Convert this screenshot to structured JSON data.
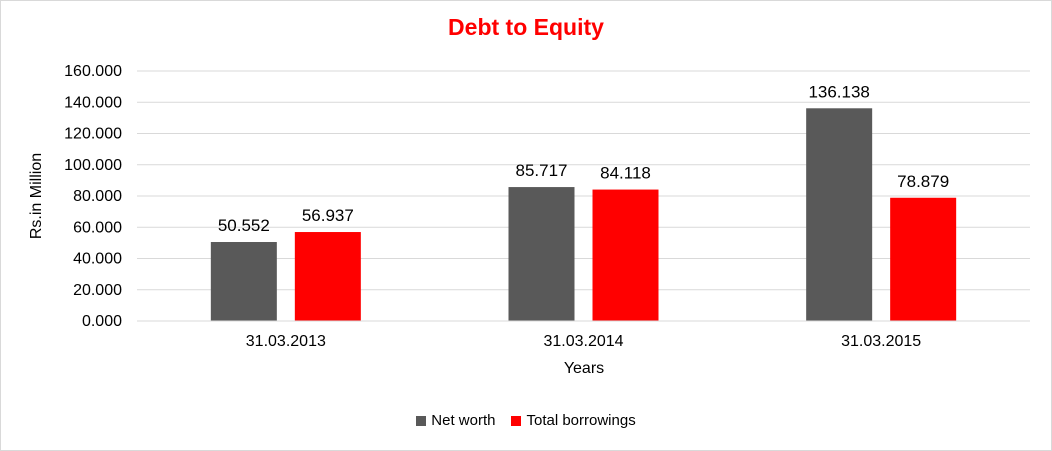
{
  "chart_data": {
    "type": "bar",
    "title": "Debt to Equity",
    "xlabel": "Years",
    "ylabel": "Rs.in Million",
    "ylim": [
      0,
      160
    ],
    "yticks": [
      "0.000",
      "20.000",
      "40.000",
      "60.000",
      "80.000",
      "100.000",
      "120.000",
      "140.000",
      "160.000"
    ],
    "categories": [
      "31.03.2013",
      "31.03.2014",
      "31.03.2015"
    ],
    "series": [
      {
        "name": "Net worth",
        "values": [
          50.552,
          85.717,
          136.138
        ],
        "labels": [
          "50.552",
          "85.717",
          "136.138"
        ],
        "color": "#595959"
      },
      {
        "name": "Total borrowings",
        "values": [
          56.937,
          84.118,
          78.879
        ],
        "labels": [
          "56.937",
          "84.118",
          "78.879"
        ],
        "color": "#ff0000"
      }
    ],
    "grid": true,
    "legend": "bottom",
    "title_color": "#ff0000"
  }
}
